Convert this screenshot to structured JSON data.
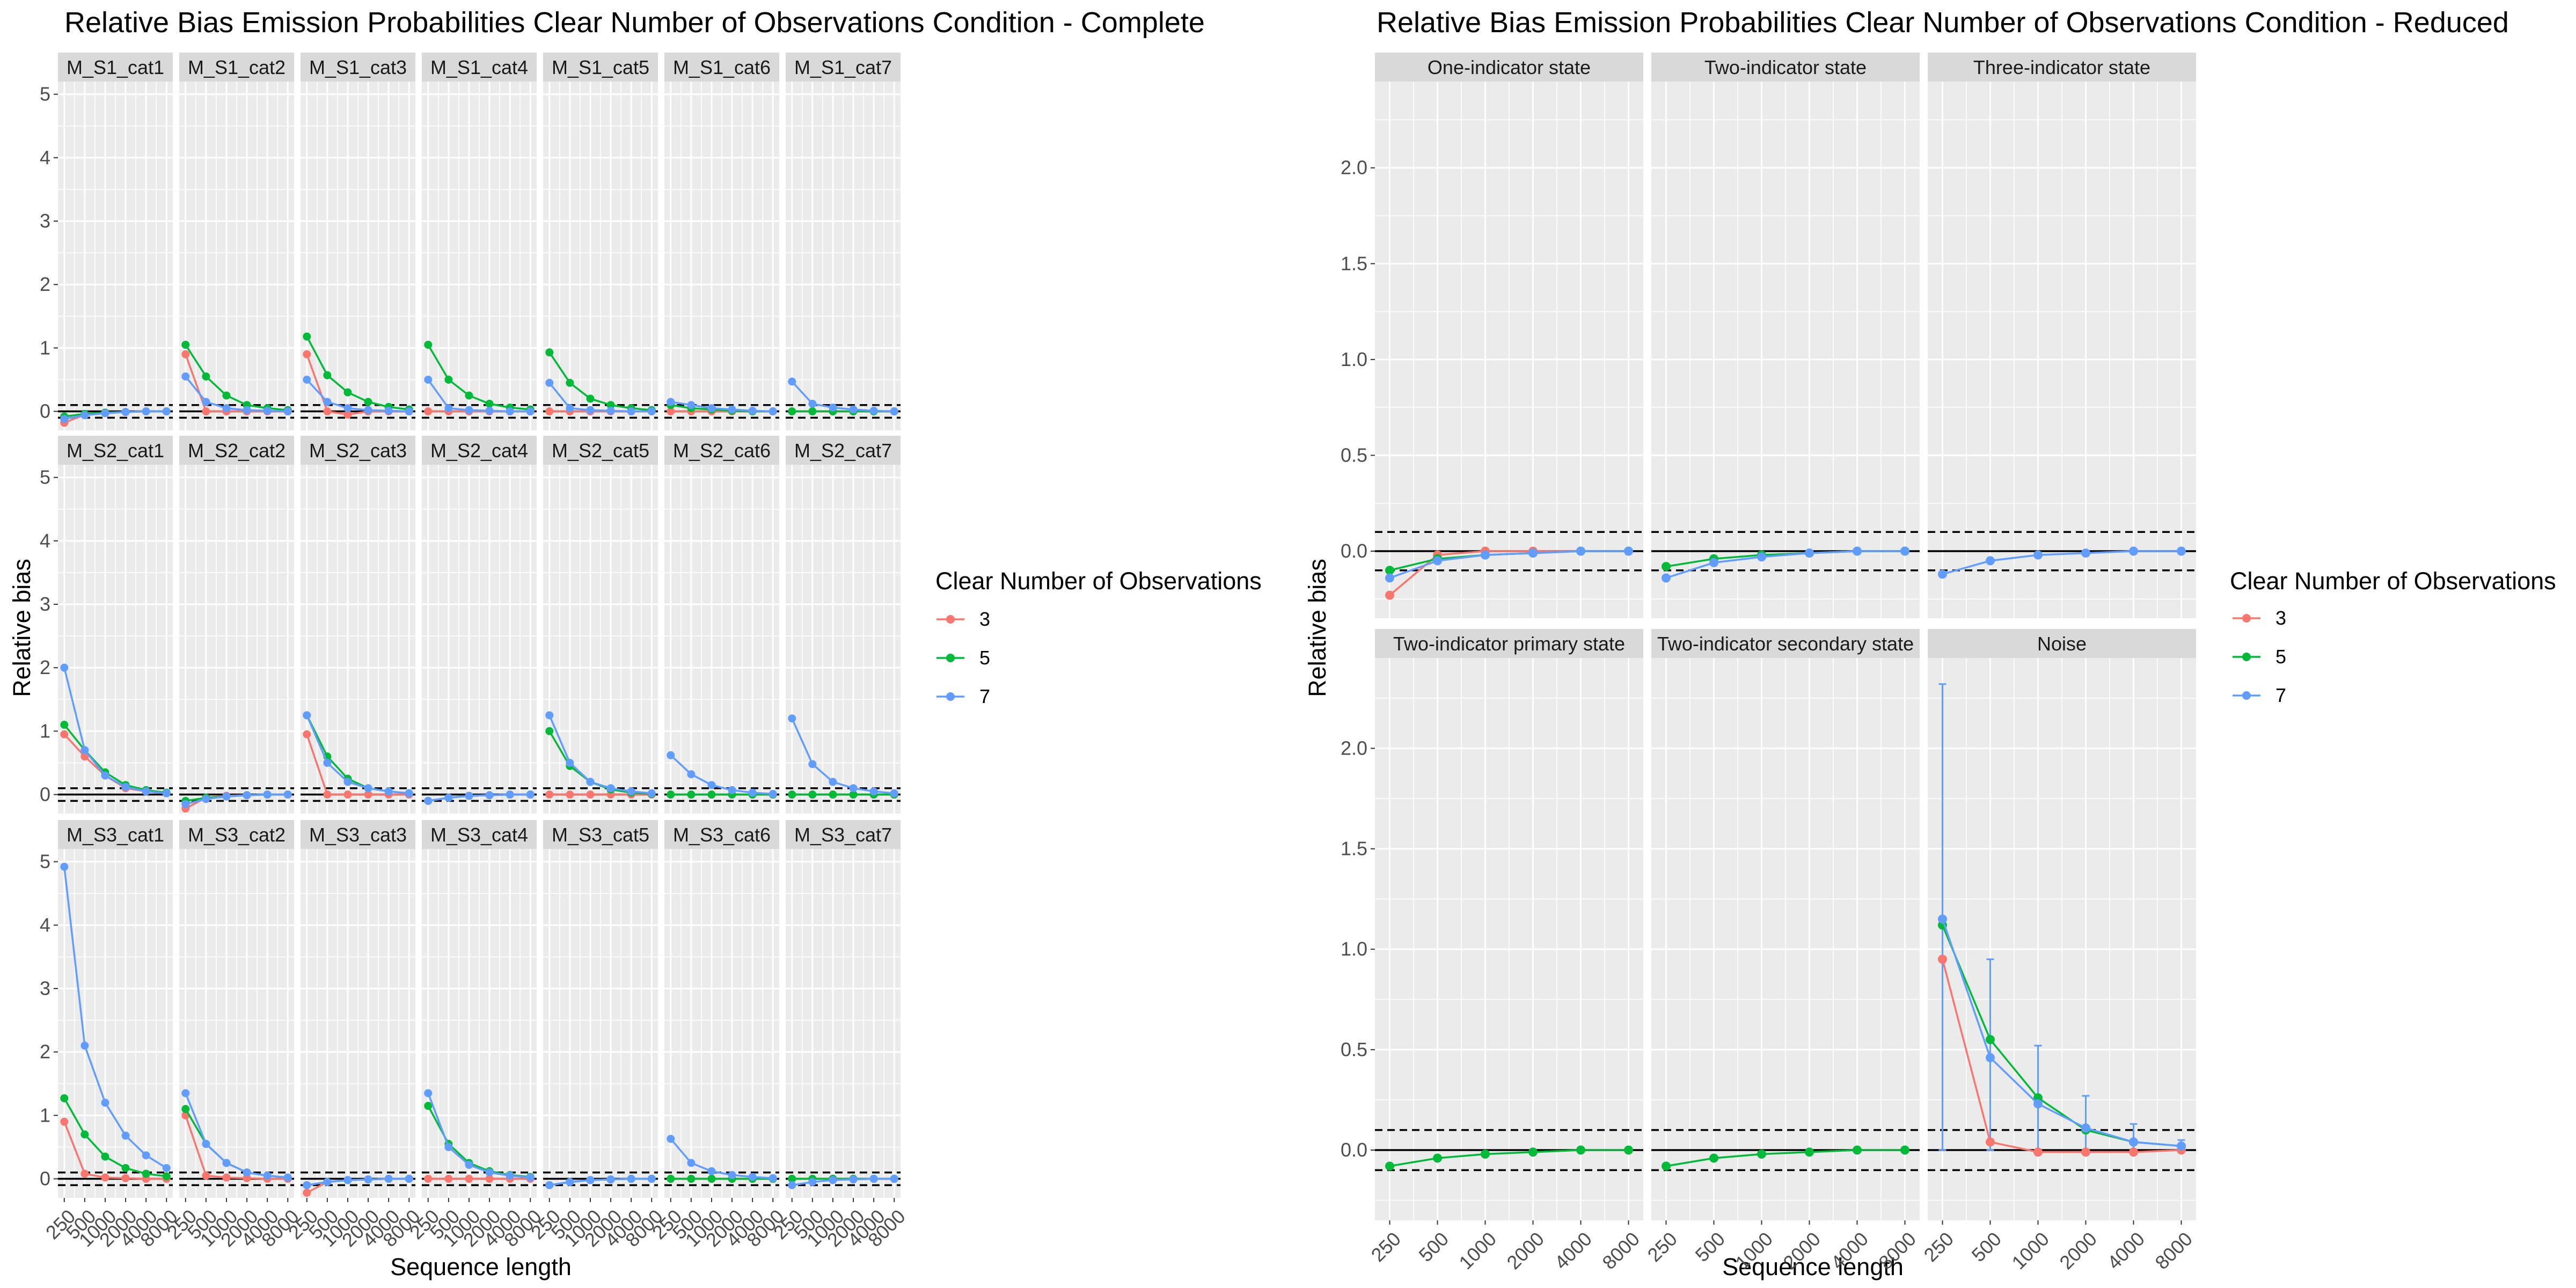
{
  "chart_data": [
    {
      "type": "line",
      "title": "Relative Bias Emission Probabilities Clear Number of Observations Condition - Complete",
      "xlabel": "Sequence length",
      "ylabel": "Relative bias",
      "x": [
        "250",
        "500",
        "1000",
        "2000",
        "4000",
        "8000"
      ],
      "y_ticks": [
        "0",
        "1",
        "2",
        "3",
        "4",
        "5"
      ],
      "ylim": [
        -0.3,
        5.2
      ],
      "reference_lines": {
        "solid": 0,
        "dashed": [
          -0.1,
          0.1
        ]
      },
      "legend": {
        "title": "Clear Number of Observations",
        "position": "right",
        "labels": [
          "3",
          "5",
          "7"
        ]
      },
      "series_colors": [
        "#F8766D",
        "#00BA38",
        "#619CFF"
      ],
      "panels": [
        {
          "label": "M_S1_cat1",
          "series": [
            [
              -0.18,
              -0.05,
              -0.02,
              -0.01,
              0,
              0
            ],
            [
              -0.08,
              -0.04,
              -0.02,
              -0.01,
              0,
              0
            ],
            [
              -0.12,
              -0.06,
              -0.03,
              -0.01,
              0,
              0
            ]
          ]
        },
        {
          "label": "M_S1_cat2",
          "series": [
            [
              0.9,
              0,
              0,
              0,
              0,
              0
            ],
            [
              1.05,
              0.55,
              0.25,
              0.1,
              0.05,
              0.02
            ],
            [
              0.55,
              0.15,
              0.05,
              0.02,
              0.01,
              0
            ]
          ]
        },
        {
          "label": "M_S1_cat3",
          "series": [
            [
              0.9,
              0,
              -0.05,
              0,
              0,
              0
            ],
            [
              1.18,
              0.57,
              0.3,
              0.15,
              0.07,
              0.03
            ],
            [
              0.5,
              0.15,
              0.05,
              0.02,
              0.01,
              0
            ]
          ]
        },
        {
          "label": "M_S1_cat4",
          "series": [
            [
              0,
              0,
              0,
              0,
              0,
              0
            ],
            [
              1.05,
              0.5,
              0.25,
              0.12,
              0.06,
              0.03
            ],
            [
              0.5,
              0.05,
              0.02,
              0.01,
              0,
              0
            ]
          ]
        },
        {
          "label": "M_S1_cat5",
          "series": [
            [
              0,
              0,
              0,
              0,
              0,
              0
            ],
            [
              0.93,
              0.45,
              0.2,
              0.1,
              0.05,
              0.02
            ],
            [
              0.45,
              0.05,
              0.02,
              0.01,
              0,
              0
            ]
          ]
        },
        {
          "label": "M_S1_cat6",
          "series": [
            [
              0,
              0,
              0,
              0,
              0,
              0
            ],
            [
              0.1,
              0.05,
              0.03,
              0.01,
              0,
              0
            ],
            [
              0.15,
              0.1,
              0.05,
              0.03,
              0.01,
              0
            ]
          ]
        },
        {
          "label": "M_S1_cat7",
          "series": [
            [
              0,
              0,
              0,
              0,
              0,
              0
            ],
            [
              0,
              0,
              0,
              0,
              0,
              0
            ],
            [
              0.47,
              0.12,
              0.06,
              0.03,
              0.01,
              0
            ]
          ]
        },
        {
          "label": "M_S2_cat1",
          "series": [
            [
              0.95,
              0.6,
              0.3,
              0.1,
              0.05,
              0.02
            ],
            [
              1.1,
              0.7,
              0.35,
              0.15,
              0.07,
              0.03
            ],
            [
              2.0,
              0.7,
              0.3,
              0.12,
              0.05,
              0.02
            ]
          ]
        },
        {
          "label": "M_S2_cat2",
          "series": [
            [
              -0.22,
              -0.05,
              -0.02,
              -0.01,
              0,
              0
            ],
            [
              -0.1,
              -0.05,
              -0.03,
              -0.01,
              0,
              0
            ],
            [
              -0.15,
              -0.07,
              -0.03,
              -0.01,
              0,
              0
            ]
          ]
        },
        {
          "label": "M_S2_cat3",
          "series": [
            [
              0.95,
              0,
              0,
              0,
              0,
              0
            ],
            [
              1.25,
              0.6,
              0.25,
              0.1,
              0.05,
              0.02
            ],
            [
              1.25,
              0.5,
              0.2,
              0.1,
              0.05,
              0.02
            ]
          ]
        },
        {
          "label": "M_S2_cat4",
          "series": [
            [
              -0.1,
              -0.05,
              -0.02,
              -0.01,
              0,
              0
            ],
            [
              -0.1,
              -0.05,
              -0.02,
              -0.01,
              0,
              0
            ],
            [
              -0.1,
              -0.05,
              -0.02,
              -0.01,
              0,
              0
            ]
          ]
        },
        {
          "label": "M_S2_cat5",
          "series": [
            [
              0,
              0,
              0,
              0,
              0,
              0
            ],
            [
              1.0,
              0.45,
              0.2,
              0.08,
              0.03,
              0.01
            ],
            [
              1.25,
              0.5,
              0.2,
              0.1,
              0.05,
              0.02
            ]
          ]
        },
        {
          "label": "M_S2_cat6",
          "series": [
            [
              0,
              0,
              0,
              0,
              0,
              0
            ],
            [
              0,
              0,
              0,
              0,
              0,
              0
            ],
            [
              0.62,
              0.32,
              0.15,
              0.07,
              0.03,
              0.01
            ]
          ]
        },
        {
          "label": "M_S2_cat7",
          "series": [
            [
              0,
              0,
              0,
              0,
              0,
              0
            ],
            [
              0,
              0,
              0,
              0,
              0,
              0
            ],
            [
              1.2,
              0.48,
              0.2,
              0.1,
              0.05,
              0.02
            ]
          ]
        },
        {
          "label": "M_S3_cat1",
          "series": [
            [
              0.9,
              0.08,
              0.02,
              0.01,
              0,
              0
            ],
            [
              1.27,
              0.7,
              0.35,
              0.17,
              0.08,
              0.04
            ],
            [
              4.92,
              2.1,
              1.2,
              0.68,
              0.37,
              0.17
            ]
          ]
        },
        {
          "label": "M_S3_cat2",
          "series": [
            [
              1.0,
              0.05,
              0.02,
              0.01,
              0,
              0
            ],
            [
              1.1,
              0.55,
              0.25,
              0.1,
              0.05,
              0.02
            ],
            [
              1.35,
              0.55,
              0.25,
              0.1,
              0.05,
              0.02
            ]
          ]
        },
        {
          "label": "M_S3_cat3",
          "series": [
            [
              -0.22,
              -0.05,
              -0.02,
              -0.01,
              0,
              0
            ],
            [
              -0.1,
              -0.05,
              -0.02,
              -0.01,
              0,
              0
            ],
            [
              -0.1,
              -0.05,
              -0.02,
              -0.01,
              0,
              0
            ]
          ]
        },
        {
          "label": "M_S3_cat4",
          "series": [
            [
              0,
              0,
              0,
              0,
              0,
              0
            ],
            [
              1.15,
              0.55,
              0.25,
              0.12,
              0.06,
              0.03
            ],
            [
              1.35,
              0.5,
              0.22,
              0.1,
              0.05,
              0.02
            ]
          ]
        },
        {
          "label": "M_S3_cat5",
          "series": [
            [
              -0.1,
              -0.05,
              -0.02,
              -0.01,
              0,
              0
            ],
            [
              -0.1,
              -0.05,
              -0.02,
              -0.01,
              0,
              0
            ],
            [
              -0.1,
              -0.05,
              -0.02,
              -0.01,
              0,
              0
            ]
          ]
        },
        {
          "label": "M_S3_cat6",
          "series": [
            [
              0,
              0,
              0,
              0,
              0,
              0
            ],
            [
              0,
              0,
              0,
              0,
              0,
              0
            ],
            [
              0.63,
              0.25,
              0.12,
              0.06,
              0.03,
              0.01
            ]
          ]
        },
        {
          "label": "M_S3_cat7",
          "series": [
            [
              0,
              0,
              0,
              0,
              0,
              0
            ],
            [
              0,
              0,
              0,
              0,
              0,
              0
            ],
            [
              -0.1,
              -0.05,
              -0.02,
              -0.01,
              0,
              0
            ]
          ]
        }
      ]
    },
    {
      "type": "line",
      "title": "Relative Bias Emission Probabilities Clear Number of Observations Condition - Reduced",
      "xlabel": "Sequence length",
      "ylabel": "Relative bias",
      "x": [
        "250",
        "500",
        "1000",
        "2000",
        "4000",
        "8000"
      ],
      "y_ticks": [
        "0.0",
        "0.5",
        "1.0",
        "1.5",
        "2.0"
      ],
      "ylim": [
        -0.35,
        2.45
      ],
      "reference_lines": {
        "solid": 0,
        "dashed": [
          -0.1,
          0.1
        ]
      },
      "legend": {
        "title": "Clear Number of Observations",
        "position": "right",
        "labels": [
          "3",
          "5",
          "7"
        ]
      },
      "series_colors": [
        "#F8766D",
        "#00BA38",
        "#619CFF"
      ],
      "panels": [
        {
          "label": "One-indicator state",
          "series": [
            [
              -0.23,
              -0.02,
              0,
              0,
              0,
              0
            ],
            [
              -0.1,
              -0.04,
              -0.02,
              -0.01,
              0,
              0
            ],
            [
              -0.14,
              -0.05,
              -0.02,
              -0.01,
              0,
              0
            ]
          ]
        },
        {
          "label": "Two-indicator state",
          "series": [
            null,
            [
              -0.08,
              -0.04,
              -0.02,
              -0.01,
              0,
              0
            ],
            [
              -0.14,
              -0.06,
              -0.03,
              -0.01,
              0,
              0
            ]
          ]
        },
        {
          "label": "Three-indicator state",
          "series": [
            null,
            null,
            [
              -0.12,
              -0.05,
              -0.02,
              -0.01,
              0,
              0
            ]
          ]
        },
        {
          "label": "Two-indicator primary state",
          "series": [
            null,
            [
              -0.08,
              -0.04,
              -0.02,
              -0.01,
              0,
              0
            ],
            null
          ]
        },
        {
          "label": "Two-indicator secondary state",
          "series": [
            null,
            [
              -0.08,
              -0.04,
              -0.02,
              -0.01,
              0,
              0
            ],
            null
          ]
        },
        {
          "label": "Noise",
          "series": [
            [
              0.95,
              0.04,
              -0.01,
              -0.01,
              -0.01,
              0
            ],
            [
              1.12,
              0.55,
              0.26,
              0.1,
              0.04,
              0.02
            ],
            [
              1.15,
              0.46,
              0.23,
              0.11,
              0.04,
              0.02
            ]
          ],
          "error_bars": [
            null,
            null,
            [
              [
                0,
                2.32
              ],
              [
                0,
                0.95
              ],
              [
                0,
                0.52
              ],
              [
                0,
                0.27
              ],
              [
                0,
                0.13
              ],
              [
                0,
                0.05
              ]
            ]
          ]
        }
      ]
    }
  ]
}
